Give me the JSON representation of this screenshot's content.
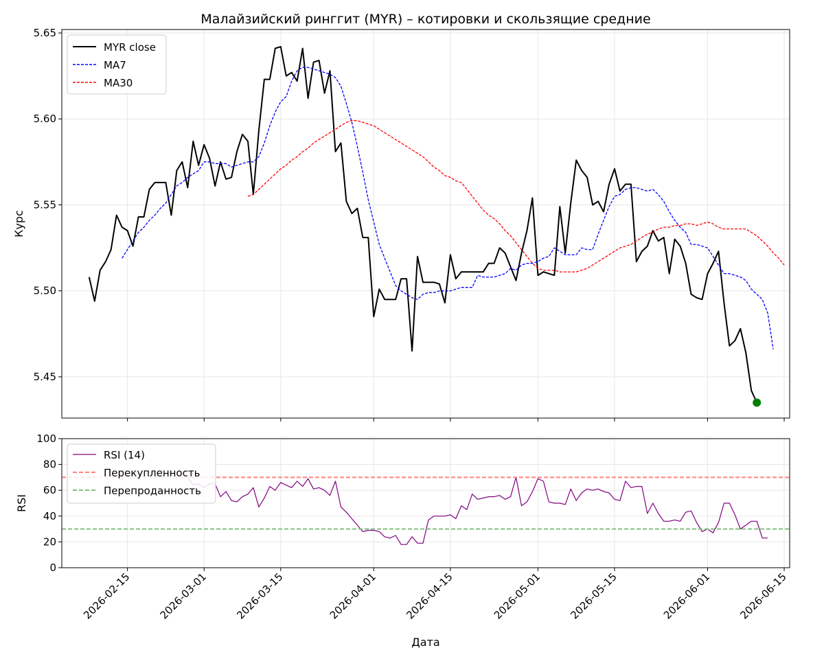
{
  "chart_data": [
    {
      "type": "line",
      "title": "Малайзийский ринггит (MYR) – котировки и скользящие средние",
      "ylabel": "Курс",
      "xlabel": "",
      "ylim": [
        5.426,
        5.652
      ],
      "yticks": [
        5.45,
        5.5,
        5.55,
        5.6,
        5.65
      ],
      "ytick_labels": [
        "5.45",
        "5.50",
        "5.55",
        "5.60",
        "5.65"
      ],
      "grid": true,
      "legend_position": "top-left",
      "series": [
        {
          "name": "MYR close",
          "color": "#000000",
          "style": "solid",
          "x": [
            "2026-02-08",
            "2026-02-09",
            "2026-02-10",
            "2026-02-11",
            "2026-02-12",
            "2026-02-13",
            "2026-02-14",
            "2026-02-15",
            "2026-02-16",
            "2026-02-17",
            "2026-02-18",
            "2026-02-19",
            "2026-02-20",
            "2026-02-21",
            "2026-02-22",
            "2026-02-23",
            "2026-02-24",
            "2026-02-25",
            "2026-02-26",
            "2026-02-27",
            "2026-02-28",
            "2026-03-01",
            "2026-03-02",
            "2026-03-03",
            "2026-03-04",
            "2026-03-05",
            "2026-03-06",
            "2026-03-07",
            "2026-03-08",
            "2026-03-09",
            "2026-03-10",
            "2026-03-11",
            "2026-03-12",
            "2026-03-13",
            "2026-03-14",
            "2026-03-15",
            "2026-03-16",
            "2026-03-17",
            "2026-03-18",
            "2026-03-19",
            "2026-03-20",
            "2026-03-21",
            "2026-03-22",
            "2026-03-23",
            "2026-03-24",
            "2026-03-25",
            "2026-03-26",
            "2026-03-27",
            "2026-03-28",
            "2026-03-29",
            "2026-03-30",
            "2026-03-31",
            "2026-04-01",
            "2026-04-02",
            "2026-04-03",
            "2026-04-04",
            "2026-04-05",
            "2026-04-06",
            "2026-04-07",
            "2026-04-08",
            "2026-04-09",
            "2026-04-10",
            "2026-04-11",
            "2026-04-12",
            "2026-04-13",
            "2026-04-14",
            "2026-04-15",
            "2026-04-16",
            "2026-04-17",
            "2026-04-18",
            "2026-04-19",
            "2026-04-20",
            "2026-04-21",
            "2026-04-22",
            "2026-04-23",
            "2026-04-24",
            "2026-04-25",
            "2026-04-26",
            "2026-04-27",
            "2026-04-28",
            "2026-04-29",
            "2026-04-30",
            "2026-05-01",
            "2026-05-02",
            "2026-05-03",
            "2026-05-04",
            "2026-05-05",
            "2026-05-06",
            "2026-05-07",
            "2026-05-08",
            "2026-05-09",
            "2026-05-10",
            "2026-05-11",
            "2026-05-12",
            "2026-05-13",
            "2026-05-14",
            "2026-05-15",
            "2026-05-16",
            "2026-05-17",
            "2026-05-18",
            "2026-05-19",
            "2026-05-20",
            "2026-05-21",
            "2026-05-22",
            "2026-05-23",
            "2026-05-24",
            "2026-05-25",
            "2026-05-26",
            "2026-05-27",
            "2026-05-28",
            "2026-05-29",
            "2026-05-30",
            "2026-05-31",
            "2026-06-01",
            "2026-06-02",
            "2026-06-03",
            "2026-06-04",
            "2026-06-05",
            "2026-06-06",
            "2026-06-07",
            "2026-06-08",
            "2026-06-09",
            "2026-06-10"
          ],
          "values": [
            5.508,
            5.494,
            5.512,
            5.517,
            5.524,
            5.544,
            5.537,
            5.535,
            5.526,
            5.543,
            5.543,
            5.559,
            5.563,
            5.563,
            5.563,
            5.544,
            5.57,
            5.575,
            5.56,
            5.587,
            5.573,
            5.585,
            5.577,
            5.561,
            5.575,
            5.565,
            5.566,
            5.581,
            5.591,
            5.587,
            5.556,
            5.593,
            5.623,
            5.623,
            5.641,
            5.642,
            5.625,
            5.627,
            5.622,
            5.641,
            5.612,
            5.633,
            5.634,
            5.615,
            5.628,
            5.581,
            5.586,
            5.552,
            5.545,
            5.548,
            5.531,
            5.531,
            5.485,
            5.501,
            5.495,
            5.495,
            5.495,
            5.507,
            5.507,
            5.465,
            5.52,
            5.505,
            5.505,
            5.505,
            5.504,
            5.493,
            5.521,
            5.507,
            5.511,
            5.511,
            5.511,
            5.511,
            5.511,
            5.516,
            5.516,
            5.525,
            5.522,
            5.514,
            5.506,
            5.522,
            5.535,
            5.554,
            5.509,
            5.511,
            5.51,
            5.509,
            5.549,
            5.522,
            5.551,
            5.576,
            5.57,
            5.566,
            5.55,
            5.552,
            5.546,
            5.562,
            5.571,
            5.558,
            5.562,
            5.562,
            5.517,
            5.523,
            5.526,
            5.535,
            5.529,
            5.531,
            5.51,
            5.53,
            5.526,
            5.516,
            5.498,
            5.496,
            5.495,
            5.51,
            5.516,
            5.523,
            5.493,
            5.468,
            5.471,
            5.478,
            5.464,
            5.442,
            5.435
          ]
        },
        {
          "name": "MA7",
          "color": "#0000ff",
          "style": "dashed",
          "x_start": "2026-02-14",
          "values": [
            5.519,
            5.524,
            5.529,
            5.534,
            5.537,
            5.541,
            5.544,
            5.548,
            5.551,
            5.556,
            5.561,
            5.563,
            5.566,
            5.568,
            5.57,
            5.575,
            5.575,
            5.574,
            5.574,
            5.574,
            5.572,
            5.573,
            5.574,
            5.575,
            5.575,
            5.578,
            5.586,
            5.596,
            5.604,
            5.61,
            5.613,
            5.622,
            5.628,
            5.63,
            5.63,
            5.629,
            5.628,
            5.627,
            5.626,
            5.624,
            5.619,
            5.609,
            5.598,
            5.584,
            5.569,
            5.553,
            5.54,
            5.527,
            5.519,
            5.511,
            5.503,
            5.5,
            5.498,
            5.496,
            5.495,
            5.498,
            5.499,
            5.499,
            5.5,
            5.5,
            5.5,
            5.501,
            5.502,
            5.502,
            5.502,
            5.509,
            5.508,
            5.508,
            5.508,
            5.509,
            5.51,
            5.513,
            5.512,
            5.515,
            5.516,
            5.516,
            5.517,
            5.519,
            5.52,
            5.525,
            5.523,
            5.521,
            5.521,
            5.521,
            5.525,
            5.524,
            5.524,
            5.533,
            5.541,
            5.549,
            5.555,
            5.556,
            5.559,
            5.56,
            5.56,
            5.559,
            5.558,
            5.559,
            5.556,
            5.552,
            5.546,
            5.541,
            5.537,
            5.534,
            5.527,
            5.527,
            5.526,
            5.525,
            5.52,
            5.515,
            5.51,
            5.51,
            5.509,
            5.508,
            5.506,
            5.501,
            5.498,
            5.495,
            5.487,
            5.466
          ]
        },
        {
          "name": "MA30",
          "color": "#ff0000",
          "style": "dashed",
          "x_start": "2026-03-09",
          "values": [
            5.555,
            5.556,
            5.559,
            5.562,
            5.565,
            5.568,
            5.571,
            5.573,
            5.576,
            5.578,
            5.581,
            5.583,
            5.586,
            5.588,
            5.59,
            5.592,
            5.594,
            5.596,
            5.598,
            5.599,
            5.599,
            5.598,
            5.597,
            5.596,
            5.594,
            5.592,
            5.59,
            5.588,
            5.586,
            5.584,
            5.582,
            5.58,
            5.578,
            5.575,
            5.572,
            5.57,
            5.567,
            5.566,
            5.564,
            5.563,
            5.559,
            5.555,
            5.551,
            5.547,
            5.544,
            5.542,
            5.539,
            5.535,
            5.532,
            5.528,
            5.524,
            5.52,
            5.516,
            5.513,
            5.512,
            5.512,
            5.512,
            5.511,
            5.511,
            5.511,
            5.511,
            5.512,
            5.513,
            5.515,
            5.517,
            5.519,
            5.521,
            5.523,
            5.525,
            5.526,
            5.527,
            5.529,
            5.531,
            5.533,
            5.534,
            5.536,
            5.537,
            5.537,
            5.538,
            5.538,
            5.539,
            5.539,
            5.538,
            5.539,
            5.54,
            5.539,
            5.537,
            5.536,
            5.536,
            5.536,
            5.536,
            5.536,
            5.534,
            5.532,
            5.529,
            5.526,
            5.522,
            5.519,
            5.515
          ]
        }
      ],
      "last_point": {
        "x": "2026-06-10",
        "value": 5.435,
        "color": "#008000"
      }
    },
    {
      "type": "line",
      "ylabel": "RSI",
      "xlabel": "Дата",
      "ylim": [
        0,
        100
      ],
      "yticks": [
        0,
        20,
        40,
        60,
        80,
        100
      ],
      "ytick_labels": [
        "0",
        "20",
        "40",
        "60",
        "80",
        "100"
      ],
      "xticks": [
        "2026-02-15",
        "2026-03-01",
        "2026-03-15",
        "2026-04-01",
        "2026-04-15",
        "2026-05-01",
        "2026-05-15",
        "2026-06-01",
        "2026-06-15"
      ],
      "xtick_labels": [
        "2026-02-15",
        "2026-03-01",
        "2026-03-15",
        "2026-04-01",
        "2026-04-15",
        "2026-05-01",
        "2026-05-15",
        "2026-06-01",
        "2026-06-15"
      ],
      "grid": true,
      "legend_position": "top-left",
      "series": [
        {
          "name": "RSI (14)",
          "color": "#800080",
          "style": "solid",
          "x_start": "2026-02-26",
          "values": [
            70,
            64,
            65,
            62,
            65,
            65,
            55,
            59,
            52,
            51,
            55,
            57,
            62,
            47,
            54,
            63,
            60,
            66,
            64,
            62,
            67,
            63,
            69,
            61,
            62,
            60,
            56,
            67,
            47,
            43,
            38,
            33,
            28,
            29,
            29,
            28,
            24,
            23,
            25,
            18,
            18,
            24,
            19,
            19,
            37,
            40,
            40,
            40,
            41,
            38,
            48,
            45,
            57,
            53,
            54,
            55,
            55,
            56,
            53,
            55,
            70,
            48,
            51,
            59,
            69,
            67,
            51,
            50,
            50,
            49,
            61,
            52,
            58,
            61,
            60,
            61,
            59,
            58,
            53,
            52,
            67,
            62,
            63,
            63,
            42,
            50,
            42,
            36,
            36,
            37,
            36,
            43,
            44,
            35,
            28,
            30,
            27,
            35,
            50,
            50,
            41,
            30,
            33,
            36,
            36,
            23,
            23
          ]
        },
        {
          "name": "Перекупленность",
          "color": "#ff8080",
          "style": "dashed",
          "value": 70
        },
        {
          "name": "Перепроданность",
          "color": "#80c080",
          "style": "dashed",
          "value": 30
        }
      ]
    }
  ]
}
